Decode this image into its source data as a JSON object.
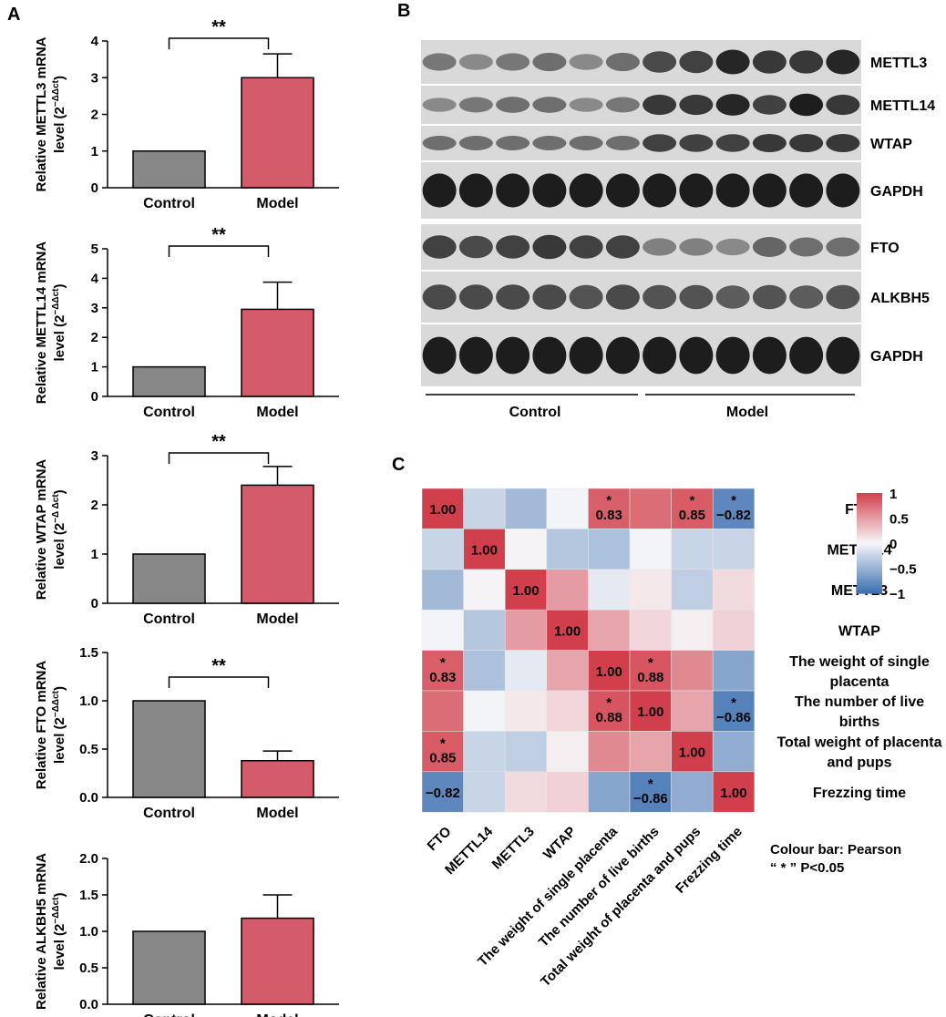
{
  "panels": {
    "a": "A",
    "b": "B",
    "c": "C"
  },
  "colors": {
    "control": "#878787",
    "model": "#d45c6a",
    "western_bg": "#d9d9d9",
    "text": "#000000"
  },
  "bar_charts": [
    {
      "id": "mettl3",
      "ylabel_main": "Relative METTL3 mRNA",
      "ylabel_sub": "level (2",
      "ylabel_exp": "−ΔΔct",
      "ylabel_close": ")",
      "categories": [
        "Control",
        "Model"
      ],
      "values": [
        1.0,
        3.0
      ],
      "errors": [
        0,
        0.65
      ],
      "ylim": [
        0,
        4
      ],
      "ticks": [
        "0",
        "1",
        "2",
        "3",
        "4"
      ],
      "tick_values": [
        0,
        1,
        2,
        3,
        4
      ],
      "significance": "**"
    },
    {
      "id": "mettl14",
      "ylabel_main": "Relative METTL14 mRNA",
      "ylabel_sub": "level (2",
      "ylabel_exp": "−ΔΔct",
      "ylabel_close": ")",
      "categories": [
        "Control",
        "Model"
      ],
      "values": [
        1.0,
        2.95
      ],
      "errors": [
        0,
        0.92
      ],
      "ylim": [
        0,
        5
      ],
      "ticks": [
        "0",
        "1",
        "2",
        "3",
        "4",
        "5"
      ],
      "tick_values": [
        0,
        1,
        2,
        3,
        4,
        5
      ],
      "significance": "**"
    },
    {
      "id": "wtap",
      "ylabel_main": "Relative WTAP mRNA",
      "ylabel_sub": "level (2",
      "ylabel_exp": "−Δ Δct",
      "ylabel_close": ")",
      "categories": [
        "Control",
        "Model"
      ],
      "values": [
        1.0,
        2.4
      ],
      "errors": [
        0,
        0.38
      ],
      "ylim": [
        0,
        3
      ],
      "ticks": [
        "0",
        "1",
        "2",
        "3"
      ],
      "tick_values": [
        0,
        1,
        2,
        3
      ],
      "significance": "**"
    },
    {
      "id": "fto",
      "ylabel_main": "Relative FTO mRNA",
      "ylabel_sub": "level (2",
      "ylabel_exp": "−ΔΔct",
      "ylabel_close": ")",
      "categories": [
        "Control",
        "Model"
      ],
      "values": [
        1.0,
        0.38
      ],
      "errors": [
        0,
        0.1
      ],
      "ylim": [
        0,
        1.5
      ],
      "ticks": [
        "0.0",
        "0.5",
        "1.0",
        "1.5"
      ],
      "tick_values": [
        0,
        0.5,
        1.0,
        1.5
      ],
      "significance": "**"
    },
    {
      "id": "alkbh5",
      "ylabel_main": "Relative ALKBH5 mRNA",
      "ylabel_sub": "level (2",
      "ylabel_exp": "−ΔΔct",
      "ylabel_close": ")",
      "categories": [
        "Control",
        "Model"
      ],
      "values": [
        1.0,
        1.18
      ],
      "errors": [
        0,
        0.32
      ],
      "ylim": [
        0,
        2.0
      ],
      "ticks": [
        "0.0",
        "0.5",
        "1.0",
        "1.5",
        "2.0"
      ],
      "tick_values": [
        0,
        0.5,
        1.0,
        1.5,
        2.0
      ],
      "significance": ""
    }
  ],
  "western": {
    "proteins": [
      {
        "name": "METTL3",
        "intensity": [
          0.45,
          0.35,
          0.45,
          0.5,
          0.35,
          0.5,
          0.7,
          0.75,
          0.9,
          0.8,
          0.8,
          0.9
        ]
      },
      {
        "name": "METTL14",
        "intensity": [
          0.35,
          0.45,
          0.5,
          0.5,
          0.35,
          0.45,
          0.8,
          0.8,
          0.9,
          0.75,
          0.95,
          0.8
        ]
      },
      {
        "name": "WTAP",
        "intensity": [
          0.5,
          0.5,
          0.5,
          0.5,
          0.5,
          0.5,
          0.75,
          0.75,
          0.75,
          0.8,
          0.8,
          0.8
        ]
      },
      {
        "name": "GAPDH",
        "intensity": [
          0.95,
          0.95,
          0.95,
          0.95,
          0.95,
          0.95,
          0.95,
          0.95,
          0.95,
          0.95,
          0.95,
          0.95
        ]
      },
      {
        "name": "FTO",
        "intensity": [
          0.75,
          0.7,
          0.75,
          0.8,
          0.75,
          0.75,
          0.4,
          0.4,
          0.35,
          0.55,
          0.5,
          0.5
        ]
      },
      {
        "name": "ALKBH5",
        "intensity": [
          0.7,
          0.7,
          0.7,
          0.7,
          0.65,
          0.7,
          0.65,
          0.65,
          0.6,
          0.65,
          0.6,
          0.65
        ]
      },
      {
        "name": "GAPDH",
        "intensity": [
          0.95,
          0.95,
          0.95,
          0.95,
          0.95,
          0.95,
          0.95,
          0.95,
          0.95,
          0.95,
          0.95,
          0.95
        ]
      }
    ],
    "groups": [
      "Control",
      "Model"
    ]
  },
  "chart_data": [
    {
      "type": "bar",
      "title": "",
      "categories": [
        "Control",
        "Model"
      ],
      "values": [
        1.0,
        3.0
      ],
      "ylabel": "Relative METTL3 mRNA level (2−ΔΔct)",
      "ylim": [
        0,
        4
      ]
    },
    {
      "type": "bar",
      "title": "",
      "categories": [
        "Control",
        "Model"
      ],
      "values": [
        1.0,
        2.95
      ],
      "ylabel": "Relative METTL14 mRNA level (2−ΔΔct)",
      "ylim": [
        0,
        5
      ]
    },
    {
      "type": "bar",
      "title": "",
      "categories": [
        "Control",
        "Model"
      ],
      "values": [
        1.0,
        2.4
      ],
      "ylabel": "Relative WTAP mRNA level (2−Δ Δct)",
      "ylim": [
        0,
        3
      ]
    },
    {
      "type": "bar",
      "title": "",
      "categories": [
        "Control",
        "Model"
      ],
      "values": [
        1.0,
        0.38
      ],
      "ylabel": "Relative FTO mRNA level (2−ΔΔct)",
      "ylim": [
        0,
        1.5
      ]
    },
    {
      "type": "bar",
      "title": "",
      "categories": [
        "Control",
        "Model"
      ],
      "values": [
        1.0,
        1.18
      ],
      "ylabel": "Relative ALKBH5 mRNA level (2−ΔΔct)",
      "ylim": [
        0,
        2.0
      ]
    },
    {
      "type": "heatmap",
      "rows": [
        "FTO",
        "METTL14",
        "METTL3",
        "WTAP",
        "The weight of single placenta",
        "The number of live births",
        "Total weight of placenta and pups",
        "Frezzing time"
      ],
      "row_label_lines": [
        [
          "FTO"
        ],
        [
          "METTL14"
        ],
        [
          "METTL3"
        ],
        [
          "WTAP"
        ],
        [
          "The weight of single",
          "placenta"
        ],
        [
          "The number of live",
          "births"
        ],
        [
          "Total weight of placenta",
          "and pups"
        ],
        [
          "Frezzing time"
        ]
      ],
      "columns": [
        "FTO",
        "METTL14",
        "METTL3",
        "WTAP",
        "The weight of single placenta",
        "The number of live births",
        "Total weight of placenta and pups",
        "Frezzing time"
      ],
      "values": [
        [
          1.0,
          -0.25,
          -0.45,
          -0.02,
          0.83,
          0.75,
          0.85,
          -0.82
        ],
        [
          -0.25,
          1.0,
          0.02,
          -0.35,
          -0.4,
          -0.02,
          -0.25,
          -0.25
        ],
        [
          -0.45,
          0.02,
          1.0,
          0.5,
          -0.1,
          0.08,
          -0.3,
          0.15
        ],
        [
          -0.02,
          -0.35,
          0.5,
          1.0,
          0.45,
          0.18,
          0.05,
          0.2
        ],
        [
          0.83,
          -0.4,
          -0.1,
          0.45,
          1.0,
          0.88,
          0.6,
          -0.6
        ],
        [
          0.75,
          -0.02,
          0.08,
          0.18,
          0.88,
          1.0,
          0.45,
          -0.86
        ],
        [
          0.85,
          -0.25,
          -0.3,
          0.05,
          0.6,
          0.45,
          1.0,
          -0.55
        ],
        [
          -0.82,
          -0.25,
          0.15,
          0.2,
          -0.6,
          -0.86,
          -0.55,
          1.0
        ]
      ],
      "shown_labels": [
        {
          "r": 0,
          "c": 0,
          "text": "1.00",
          "star": false
        },
        {
          "r": 0,
          "c": 4,
          "text": "0.83",
          "star": true
        },
        {
          "r": 0,
          "c": 6,
          "text": "0.85",
          "star": true
        },
        {
          "r": 0,
          "c": 7,
          "text": "−0.82",
          "star": true
        },
        {
          "r": 1,
          "c": 1,
          "text": "1.00",
          "star": false
        },
        {
          "r": 2,
          "c": 2,
          "text": "1.00",
          "star": false
        },
        {
          "r": 3,
          "c": 3,
          "text": "1.00",
          "star": false
        },
        {
          "r": 4,
          "c": 0,
          "text": "0.83",
          "star": true
        },
        {
          "r": 4,
          "c": 4,
          "text": "1.00",
          "star": false
        },
        {
          "r": 4,
          "c": 5,
          "text": "0.88",
          "star": true
        },
        {
          "r": 5,
          "c": 4,
          "text": "0.88",
          "star": true
        },
        {
          "r": 5,
          "c": 5,
          "text": "1.00",
          "star": false
        },
        {
          "r": 5,
          "c": 7,
          "text": "−0.86",
          "star": true
        },
        {
          "r": 6,
          "c": 0,
          "text": "0.85",
          "star": true
        },
        {
          "r": 6,
          "c": 6,
          "text": "1.00",
          "star": false
        },
        {
          "r": 7,
          "c": 0,
          "text": "−0.82",
          "star": false
        },
        {
          "r": 7,
          "c": 5,
          "text": "−0.86",
          "star": true
        },
        {
          "r": 7,
          "c": 7,
          "text": "1.00",
          "star": false
        }
      ],
      "star_symbol": "*",
      "colorbar": {
        "ticks": [
          "1",
          "0.5",
          "0",
          "−0.5",
          "−1"
        ],
        "tick_values": [
          1,
          0.5,
          0,
          -0.5,
          -1
        ],
        "low": "#3b6fb0",
        "mid": "#f7f7f9",
        "high": "#d23f4c"
      },
      "note_line1": "Colour bar: Pearson",
      "note_line2": "“ * ” P<0.05"
    }
  ]
}
